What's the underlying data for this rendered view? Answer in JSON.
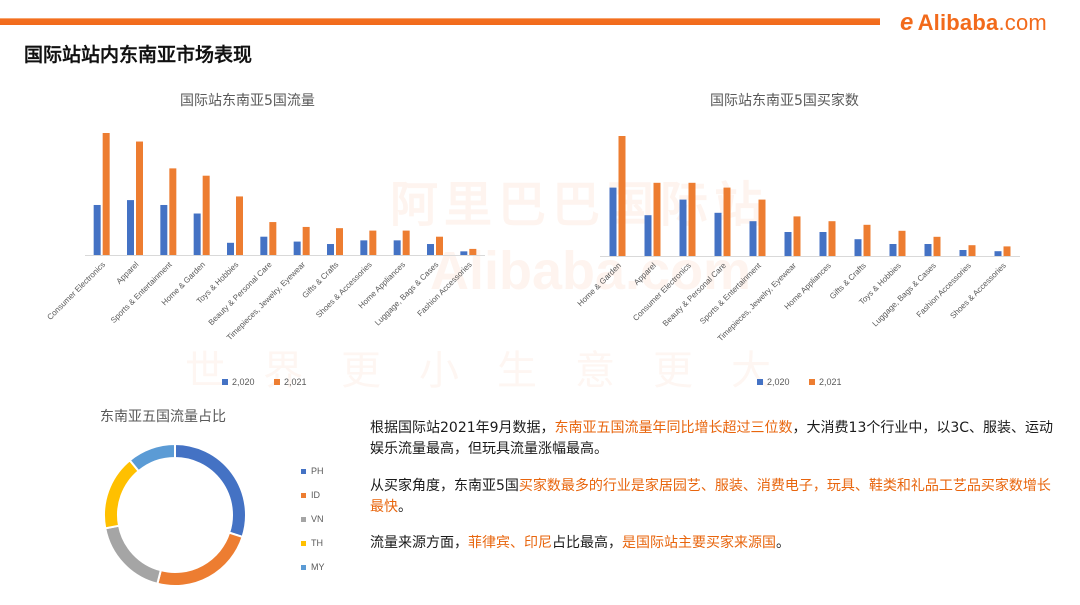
{
  "header": {
    "page_title": "国际站站内东南亚市场表现",
    "logo_mark": "e",
    "logo_name": "Alibaba",
    "logo_domain": ".com"
  },
  "watermark": {
    "line1": "阿里巴巴国际站",
    "line2": "Alibaba.com",
    "line3": "世界更小生意更大"
  },
  "colors": {
    "series_2020": "#4472c4",
    "series_2021": "#ed7d31",
    "accent": "#f26a1b",
    "highlight_text": "#e8650d"
  },
  "chart_data": [
    {
      "type": "bar",
      "title": "国际站东南亚5国流量",
      "categories": [
        "Consumer Electronics",
        "Apparel",
        "Sports & Entertainment",
        "Home & Garden",
        "Toys & Hobbies",
        "Beauty & Personal Care",
        "Timepieces, Jewelry, Eyewear",
        "Gifts & Crafts",
        "Shoes & Accessories",
        "Home Appliances",
        "Luggage, Bags & Cases",
        "Fashion Accessories"
      ],
      "series": [
        {
          "name": "2,020",
          "values": [
            41,
            45,
            41,
            34,
            10,
            15,
            11,
            9,
            12,
            12,
            9,
            3
          ]
        },
        {
          "name": "2,021",
          "values": [
            100,
            93,
            71,
            65,
            48,
            27,
            23,
            22,
            20,
            20,
            15,
            5
          ]
        }
      ],
      "ylim": [
        0,
        100
      ],
      "legend": "bottom"
    },
    {
      "type": "bar",
      "title": "国际站东南亚5国买家数",
      "categories": [
        "Home & Garden",
        "Apparel",
        "Consumer Electronics",
        "Beauty & Personal Care",
        "Sports & Entertainment",
        "Timepieces, Jewelry, Eyewear",
        "Home Appliances",
        "Gifts & Crafts",
        "Toys & Hobbies",
        "Luggage, Bags & Cases",
        "Fashion Accessories",
        "Shoes & Accessories"
      ],
      "series": [
        {
          "name": "2,020",
          "values": [
            57,
            34,
            47,
            36,
            29,
            20,
            20,
            14,
            10,
            10,
            5,
            4
          ]
        },
        {
          "name": "2,021",
          "values": [
            100,
            61,
            61,
            57,
            47,
            33,
            29,
            26,
            21,
            16,
            9,
            8
          ]
        }
      ],
      "ylim": [
        0,
        100
      ],
      "legend": "bottom"
    },
    {
      "type": "pie",
      "subtype": "donut",
      "title": "东南亚五国流量占比",
      "categories": [
        "PH",
        "ID",
        "VN",
        "TH",
        "MY"
      ],
      "values": [
        30,
        24,
        18,
        17,
        11
      ],
      "colors": [
        "#4472c4",
        "#ed7d31",
        "#a5a5a5",
        "#ffc000",
        "#5b9bd5"
      ],
      "legend": "right"
    }
  ],
  "paragraphs": [
    [
      {
        "text": "根据国际站2021年9月数据，",
        "hl": false
      },
      {
        "text": "东南亚五国流量年同比增长超过三位数",
        "hl": true
      },
      {
        "text": "，大消费13个行业中，以3C、服装、运动娱乐流量最高，但玩具流量涨幅最高。",
        "hl": false
      }
    ],
    [
      {
        "text": "从买家角度，东南亚5国",
        "hl": false
      },
      {
        "text": "买家数最多的行业是家居园艺、服装、消费电子，玩具、鞋类和礼品工艺品买家数增长最快",
        "hl": true
      },
      {
        "text": "。",
        "hl": false
      }
    ],
    [
      {
        "text": "流量来源方面，",
        "hl": false
      },
      {
        "text": "菲律宾、印尼",
        "hl": true
      },
      {
        "text": "占比最高，",
        "hl": false
      },
      {
        "text": "是国际站主要买家来源国",
        "hl": true
      },
      {
        "text": "。",
        "hl": false
      }
    ]
  ]
}
